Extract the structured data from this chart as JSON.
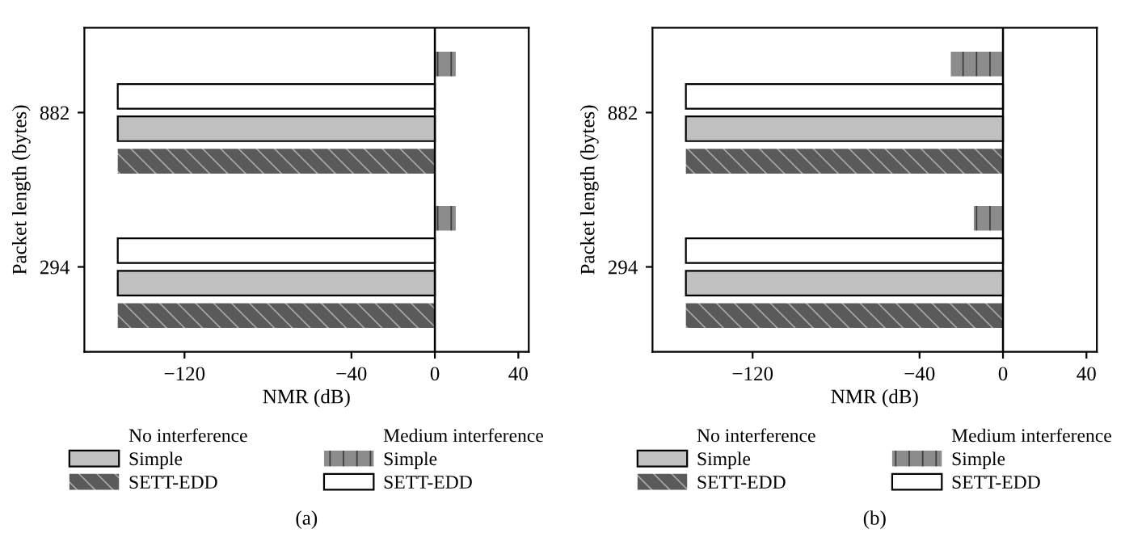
{
  "chart_data": [
    {
      "type": "bar",
      "orientation": "horizontal",
      "xlabel": "NMR (dB)",
      "ylabel": "Packet length (bytes)",
      "categories": [
        "882",
        "294"
      ],
      "xlim": [
        -168,
        45
      ],
      "xticks": [
        -120,
        -40,
        0,
        40
      ],
      "legend": "bottom",
      "grid": false,
      "ref_lines": [
        {
          "axis": "x",
          "value": 0,
          "label": null,
          "color": "#000000"
        }
      ],
      "annotations": [
        "No interference",
        "Medium interference",
        "(a)"
      ],
      "series": [
        {
          "name": "Simple",
          "color": "#c0c0c0",
          "values": [
            -152,
            -152
          ]
        },
        {
          "name": "SETT-EDD",
          "color": "#5a5a5a",
          "values": [
            -152,
            -152
          ]
        },
        {
          "name": "Simple",
          "color": "#8c8c8c",
          "values": [
            10,
            10
          ]
        },
        {
          "name": "SETT-EDD",
          "color": "#ffffff",
          "values": [
            -152,
            -152
          ]
        }
      ]
    },
    {
      "type": "bar",
      "orientation": "horizontal",
      "xlabel": "NMR (dB)",
      "ylabel": "Packet length (bytes)",
      "categories": [
        "882",
        "294"
      ],
      "xlim": [
        -168,
        45
      ],
      "xticks": [
        -120,
        -40,
        0,
        40
      ],
      "legend": "bottom",
      "grid": false,
      "ref_lines": [
        {
          "axis": "x",
          "value": 0,
          "label": null,
          "color": "#000000"
        }
      ],
      "annotations": [
        "No interference",
        "Medium interference",
        "(b)"
      ],
      "series": [
        {
          "name": "Simple",
          "color": "#c0c0c0",
          "values": [
            -152,
            -152
          ]
        },
        {
          "name": "SETT-EDD",
          "color": "#5a5a5a",
          "values": [
            -152,
            -152
          ]
        },
        {
          "name": "Simple",
          "color": "#8c8c8c",
          "values": [
            -25,
            -14
          ]
        },
        {
          "name": "SETT-EDD",
          "color": "#ffffff",
          "values": [
            -152,
            -152
          ]
        }
      ]
    }
  ]
}
